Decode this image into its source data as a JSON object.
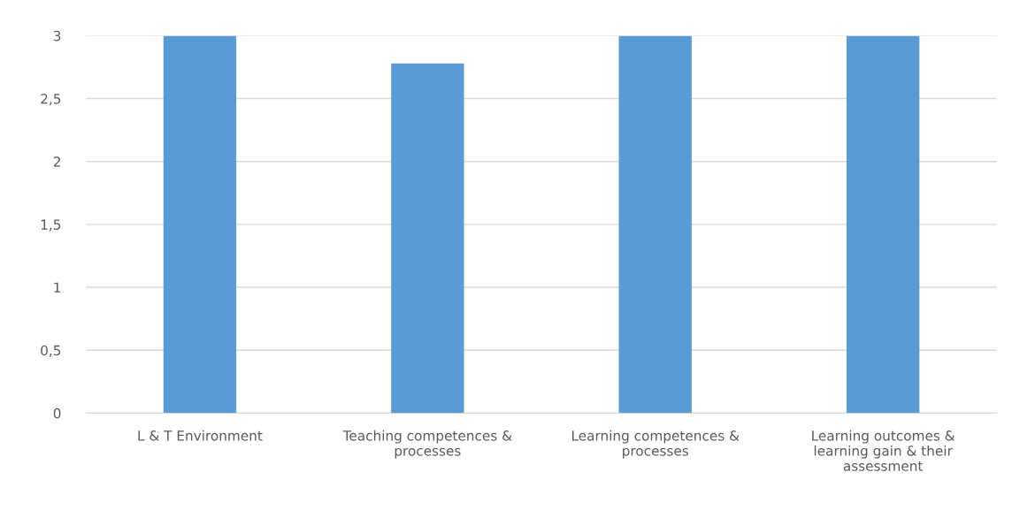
{
  "chart_data": {
    "type": "bar",
    "categories": [
      "L & T Environment",
      "Teaching competences &\nprocesses",
      "Learning competences &\nprocesses",
      "Learning outcomes &\nlearning gain & their\nassessment"
    ],
    "values": [
      3,
      2.78,
      3,
      3
    ],
    "color": "#5b9bd5",
    "ylim": [
      0,
      3
    ],
    "yticks": [
      0,
      {
        "value": 0.5,
        "label": "0,5"
      },
      1,
      {
        "value": 1.5,
        "label": "1,5"
      },
      2,
      {
        "value": 2.5,
        "label": "2,5"
      },
      3
    ],
    "grid": "y"
  }
}
